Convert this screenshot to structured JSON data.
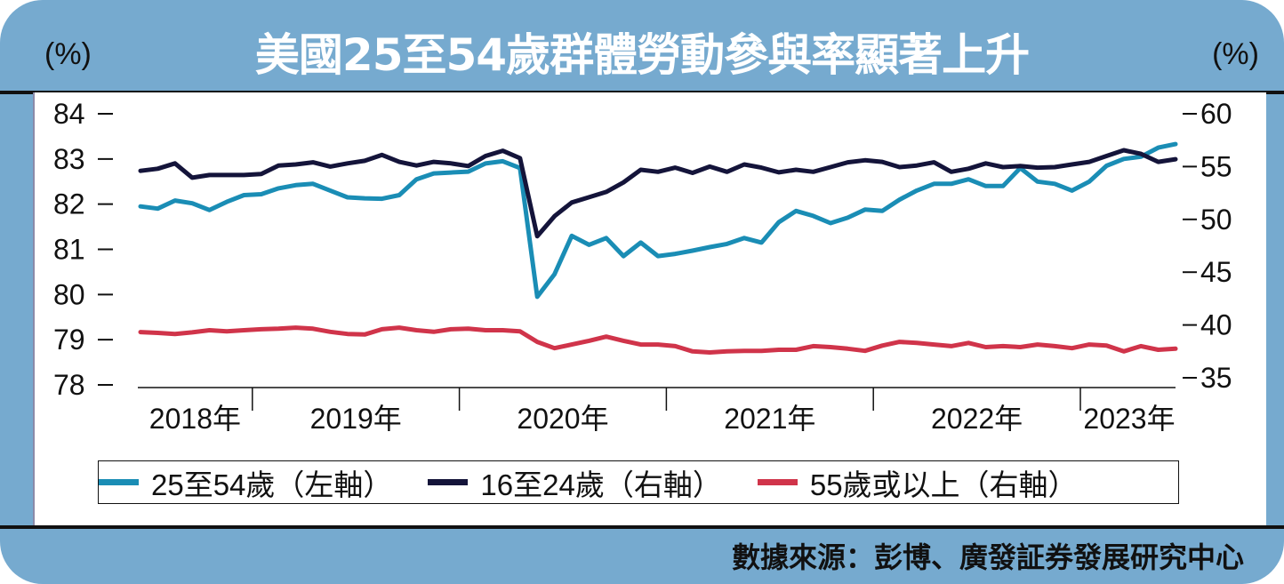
{
  "title": "美國25至54歲群體勞動參與率顯著上升",
  "left_unit": "(%)",
  "right_unit": "(%)",
  "source": "數據來源：彭博、廣發証券發展研究中心",
  "colors": {
    "frame": "#76aacf",
    "s25_54": "#1a8db5",
    "s16_24": "#14143a",
    "s55": "#d0344a"
  },
  "chart_data": {
    "type": "line",
    "title": "美國25至54歲群體勞動參與率顯著上升",
    "x": [
      "2018-06",
      "2018-07",
      "2018-08",
      "2018-09",
      "2018-10",
      "2018-11",
      "2018-12",
      "2019-01",
      "2019-02",
      "2019-03",
      "2019-04",
      "2019-05",
      "2019-06",
      "2019-07",
      "2019-08",
      "2019-09",
      "2019-10",
      "2019-11",
      "2019-12",
      "2020-01",
      "2020-02",
      "2020-03",
      "2020-04",
      "2020-05",
      "2020-06",
      "2020-07",
      "2020-08",
      "2020-09",
      "2020-10",
      "2020-11",
      "2020-12",
      "2021-01",
      "2021-02",
      "2021-03",
      "2021-04",
      "2021-05",
      "2021-06",
      "2021-07",
      "2021-08",
      "2021-09",
      "2021-10",
      "2021-11",
      "2021-12",
      "2022-01",
      "2022-02",
      "2022-03",
      "2022-04",
      "2022-05",
      "2022-06",
      "2022-07",
      "2022-08",
      "2022-09",
      "2022-10",
      "2022-11",
      "2022-12",
      "2023-01",
      "2023-02",
      "2023-03",
      "2023-04",
      "2023-05",
      "2023-06"
    ],
    "x_tick_labels": [
      "2018年",
      "2019年",
      "2020年",
      "2021年",
      "2022年",
      "2023年"
    ],
    "left_axis": {
      "label": "(%)",
      "range": [
        78,
        84
      ],
      "ticks": [
        84,
        83,
        82,
        81,
        80,
        79,
        78
      ]
    },
    "right_axis": {
      "label": "(%)",
      "range": [
        35,
        60
      ],
      "ticks": [
        60,
        55,
        50,
        45,
        40,
        35
      ]
    },
    "grid": false,
    "legend_placement": "bottom",
    "series": [
      {
        "name": "25至54歲（左軸）",
        "axis": "left",
        "color": "#1a8db5",
        "values": [
          81.95,
          81.9,
          82.08,
          82.02,
          81.87,
          82.05,
          82.2,
          82.22,
          82.35,
          82.42,
          82.45,
          82.3,
          82.15,
          82.13,
          82.12,
          82.2,
          82.55,
          82.68,
          82.7,
          82.72,
          82.9,
          82.95,
          82.8,
          79.95,
          80.45,
          81.3,
          81.1,
          81.25,
          80.85,
          81.15,
          80.85,
          80.9,
          80.97,
          81.05,
          81.12,
          81.25,
          81.15,
          81.6,
          81.85,
          81.74,
          81.58,
          81.7,
          81.88,
          81.85,
          82.1,
          82.3,
          82.45,
          82.45,
          82.55,
          82.4,
          82.4,
          82.8,
          82.5,
          82.45,
          82.3,
          82.5,
          82.85,
          83.0,
          83.05,
          83.25,
          83.33
        ]
      },
      {
        "name": "16至24歲（右軸）",
        "axis": "right",
        "color": "#14143a",
        "values": [
          54.6,
          54.8,
          55.3,
          53.95,
          54.2,
          54.2,
          54.2,
          54.3,
          55.1,
          55.2,
          55.4,
          55.0,
          55.3,
          55.55,
          56.1,
          55.45,
          55.1,
          55.45,
          55.3,
          55.05,
          56.0,
          56.5,
          55.8,
          48.4,
          50.3,
          51.6,
          52.1,
          52.6,
          53.5,
          54.7,
          54.5,
          54.9,
          54.4,
          55.0,
          54.5,
          55.2,
          54.9,
          54.45,
          54.7,
          54.5,
          54.95,
          55.4,
          55.6,
          55.45,
          54.95,
          55.1,
          55.4,
          54.5,
          54.8,
          55.3,
          54.95,
          55.05,
          54.9,
          54.95,
          55.2,
          55.45,
          56.0,
          56.55,
          56.2,
          55.45,
          55.7
        ]
      },
      {
        "name": "55歲或以上（右軸）",
        "axis": "right",
        "color": "#d0344a",
        "values": [
          39.33,
          39.25,
          39.15,
          39.3,
          39.5,
          39.4,
          39.5,
          39.6,
          39.65,
          39.75,
          39.65,
          39.35,
          39.15,
          39.1,
          39.6,
          39.75,
          39.5,
          39.35,
          39.6,
          39.65,
          39.5,
          39.5,
          39.4,
          38.4,
          37.8,
          38.15,
          38.5,
          38.9,
          38.5,
          38.15,
          38.15,
          38.0,
          37.5,
          37.4,
          37.5,
          37.55,
          37.55,
          37.65,
          37.65,
          38.0,
          37.9,
          37.75,
          37.55,
          38.05,
          38.4,
          38.3,
          38.15,
          38.0,
          38.3,
          37.9,
          38.0,
          37.9,
          38.15,
          38.0,
          37.8,
          38.15,
          38.05,
          37.5,
          38.0,
          37.65,
          37.75
        ]
      }
    ]
  }
}
